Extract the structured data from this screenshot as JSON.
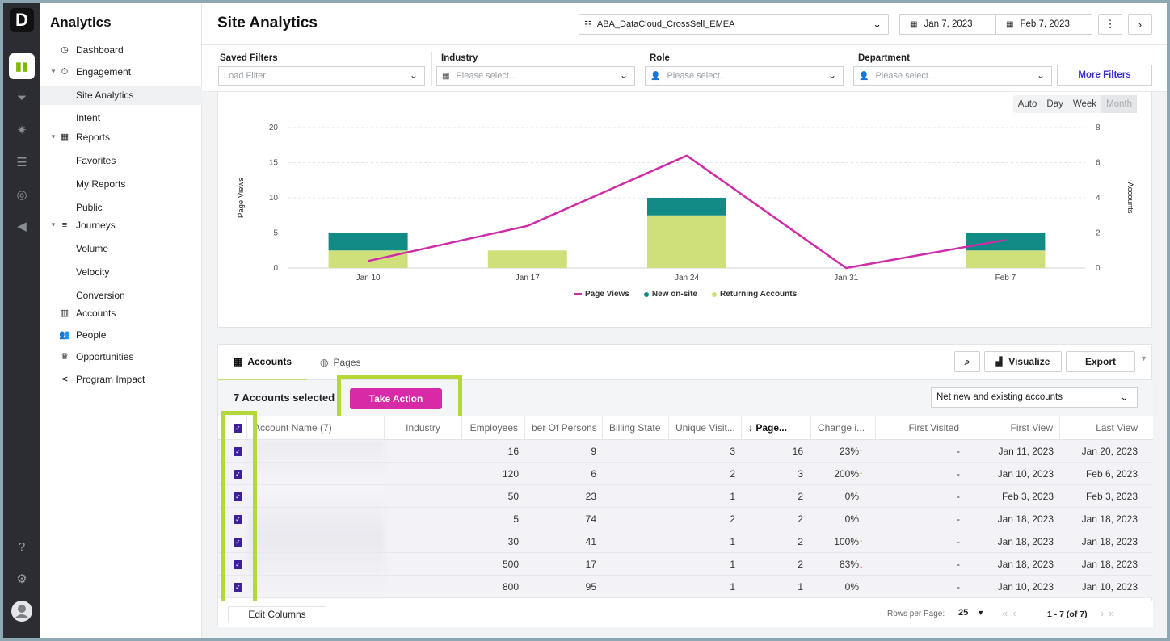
{
  "app": {
    "logo_letter": "D",
    "name": "Analytics"
  },
  "rail": {
    "icons": [
      "analytics-icon",
      "funnel-icon",
      "magic-wand-icon",
      "database-icon",
      "target-icon",
      "megaphone-icon"
    ],
    "bottom_icons": [
      "help-icon",
      "gear-icon",
      "user-avatar"
    ]
  },
  "nav": {
    "items": [
      {
        "label": "Dashboard",
        "icon": "clock-icon"
      },
      {
        "label": "Engagement",
        "icon": "stopwatch-icon"
      },
      {
        "label": "Site Analytics"
      },
      {
        "label": "Intent"
      },
      {
        "label": "Reports",
        "icon": "calendar-icon"
      },
      {
        "label": "Favorites"
      },
      {
        "label": "My Reports"
      },
      {
        "label": "Public"
      },
      {
        "label": "Journeys",
        "icon": "journey-icon"
      },
      {
        "label": "Volume"
      },
      {
        "label": "Velocity"
      },
      {
        "label": "Conversion"
      },
      {
        "label": "Accounts",
        "icon": "building-icon"
      },
      {
        "label": "People",
        "icon": "people-icon"
      },
      {
        "label": "Opportunities",
        "icon": "crown-icon"
      },
      {
        "label": "Program Impact",
        "icon": "share-icon"
      }
    ]
  },
  "header": {
    "title": "Site Analytics",
    "segment": "ABA_DataCloud_CrossSell_EMEA",
    "date_from": "Jan 7, 2023",
    "date_to": "Feb 7, 2023"
  },
  "filters": {
    "saved": {
      "label": "Saved Filters",
      "placeholder": "Load Filter"
    },
    "industry": {
      "label": "Industry",
      "placeholder": "Please select..."
    },
    "role": {
      "label": "Role",
      "placeholder": "Please select..."
    },
    "department": {
      "label": "Department",
      "placeholder": "Please select..."
    },
    "more": "More Filters"
  },
  "granularity": {
    "options": [
      "Auto",
      "Day",
      "Week",
      "Month"
    ],
    "selected": "Month"
  },
  "chart_data": {
    "type": "bar",
    "categories": [
      "Jan 10",
      "Jan 17",
      "Jan 24",
      "Jan 31",
      "Feb 7"
    ],
    "series": [
      {
        "name": "Page Views",
        "type": "line",
        "axis": "left",
        "color": "#cf2ca8",
        "values": [
          1,
          6,
          16,
          0,
          4
        ]
      },
      {
        "name": "New on-site",
        "type": "bar",
        "axis": "right",
        "stacked": true,
        "color": "#128a85",
        "values": [
          1,
          0,
          1,
          0,
          1
        ]
      },
      {
        "name": "Returning Accounts",
        "type": "bar",
        "axis": "right",
        "stacked": true,
        "color": "#cfe07a",
        "values": [
          1,
          1,
          3,
          0,
          1
        ]
      }
    ],
    "ylabel": "Page Views",
    "y2label": "Accounts",
    "ylim": [
      0,
      20
    ],
    "y2lim": [
      0,
      8
    ],
    "yticks": [
      0,
      5,
      10,
      15,
      20
    ],
    "y2ticks": [
      0,
      2,
      4,
      6,
      8
    ],
    "grid": true,
    "legend": "bottom"
  },
  "table": {
    "tabs": [
      "Accounts",
      "Pages"
    ],
    "visualize": "Visualize",
    "export": "Export",
    "selected_text": "7 Accounts selected",
    "take_action": "Take Action",
    "account_filter": "Net new and existing accounts",
    "columns": [
      "Account Name (7)",
      "Industry",
      "Employees",
      "ber Of Persons",
      "Billing State",
      "Unique Visit...",
      "Page...",
      "Change i...",
      "First Visited",
      "First View",
      "Last View"
    ],
    "rows": [
      {
        "employees": "16",
        "persons": "9",
        "unique": "3",
        "pages": "16",
        "change": "23%",
        "trend": "up",
        "first_visited": "-",
        "first_view": "Jan 11, 2023",
        "last_view": "Jan 20, 2023"
      },
      {
        "employees": "120",
        "persons": "6",
        "unique": "2",
        "pages": "3",
        "change": "200%",
        "trend": "up",
        "first_visited": "-",
        "first_view": "Jan 10, 2023",
        "last_view": "Feb 6, 2023"
      },
      {
        "employees": "50",
        "persons": "23",
        "unique": "1",
        "pages": "2",
        "change": "0%",
        "trend": "",
        "first_visited": "-",
        "first_view": "Feb 3, 2023",
        "last_view": "Feb 3, 2023"
      },
      {
        "employees": "5",
        "persons": "74",
        "unique": "2",
        "pages": "2",
        "change": "0%",
        "trend": "",
        "first_visited": "-",
        "first_view": "Jan 18, 2023",
        "last_view": "Jan 18, 2023"
      },
      {
        "employees": "30",
        "persons": "41",
        "unique": "1",
        "pages": "2",
        "change": "100%",
        "trend": "up",
        "first_visited": "-",
        "first_view": "Jan 18, 2023",
        "last_view": "Jan 18, 2023"
      },
      {
        "employees": "500",
        "persons": "17",
        "unique": "1",
        "pages": "2",
        "change": "83%",
        "trend": "down",
        "first_visited": "-",
        "first_view": "Jan 18, 2023",
        "last_view": "Jan 18, 2023"
      },
      {
        "employees": "800",
        "persons": "95",
        "unique": "1",
        "pages": "1",
        "change": "0%",
        "trend": "",
        "first_visited": "-",
        "first_view": "Jan 10, 2023",
        "last_view": "Jan 10, 2023"
      }
    ],
    "edit_columns": "Edit Columns",
    "rows_per_page_label": "Rows per Page:",
    "rows_per_page": "25",
    "page_range": "1 - 7 (of 7)"
  },
  "colors": {
    "accent": "#d62aa6",
    "highlight": "#b3d838",
    "checkbox": "#3c1e9e",
    "link": "#3b30c9"
  }
}
